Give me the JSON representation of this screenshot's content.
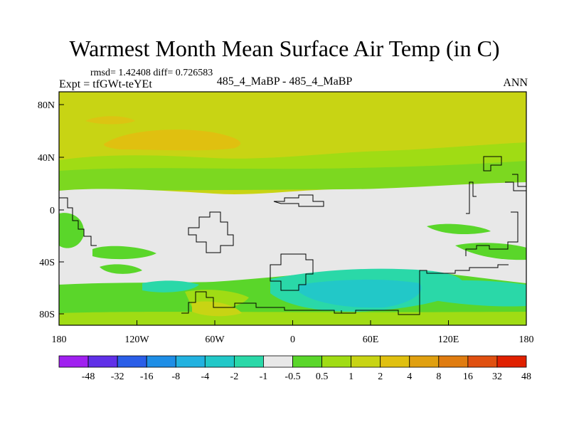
{
  "title": "Warmest Month Mean Surface Air Temp (in C)",
  "stats": "rmsd= 1.42408 diff= 0.726583",
  "expt": "Expt = tfGWt-teYEt",
  "center_label": "485_4_MaBP - 485_4_MaBP",
  "season": "ANN",
  "map": {
    "lat_ticks": [
      "80N",
      "40N",
      "0",
      "40S",
      "80S"
    ],
    "lon_ticks": [
      "180",
      "120W",
      "60W",
      "0",
      "60E",
      "120E",
      "180"
    ]
  },
  "colorbar": {
    "labels": [
      "-48",
      "-32",
      "-16",
      "-8",
      "-4",
      "-2",
      "-1",
      "-0.5",
      "0.5",
      "1",
      "2",
      "4",
      "8",
      "16",
      "32",
      "48"
    ],
    "colors": [
      "#a020f0",
      "#6030e8",
      "#2a5ee8",
      "#1e8ee6",
      "#22b2e0",
      "#22c8c8",
      "#2ad8a8",
      "#e8e8e8",
      "#5ad62a",
      "#a0dc14",
      "#c8d414",
      "#e0c010",
      "#e0a010",
      "#e07c10",
      "#e05010",
      "#e02000"
    ]
  }
}
